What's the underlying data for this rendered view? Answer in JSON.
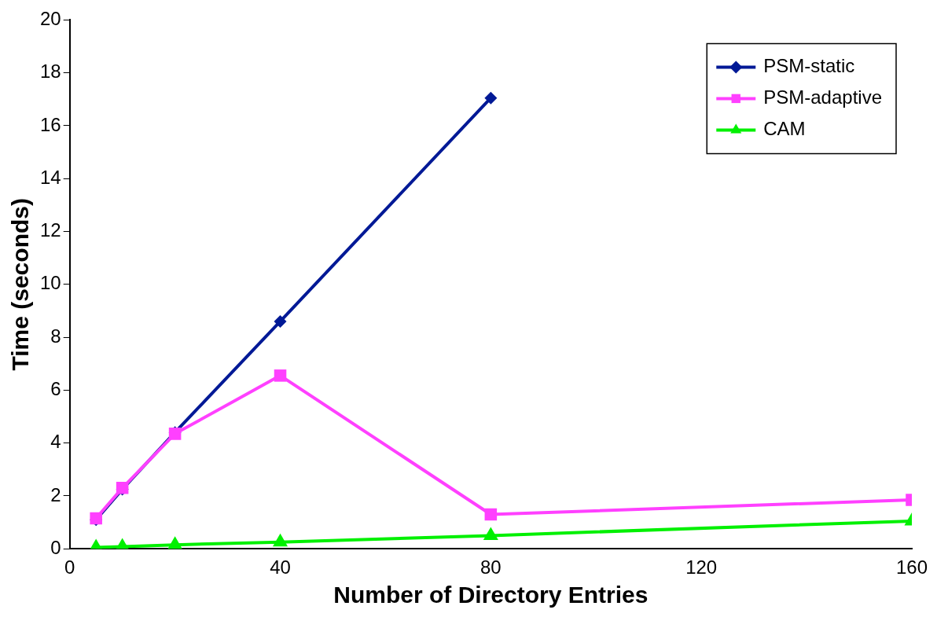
{
  "chart_data": {
    "type": "line",
    "xlabel": "Number of Directory Entries",
    "ylabel": "Time (seconds)",
    "x": [
      5,
      10,
      20,
      40,
      80,
      160
    ],
    "series": [
      {
        "name": "PSM-static",
        "color": "#001996",
        "marker": "diamond",
        "values": [
          1.1,
          2.25,
          4.4,
          8.6,
          17.05,
          null
        ]
      },
      {
        "name": "PSM-adaptive",
        "color": "#ff40ff",
        "marker": "square",
        "values": [
          1.15,
          2.3,
          4.35,
          6.55,
          1.3,
          1.85
        ]
      },
      {
        "name": "CAM",
        "color": "#00f000",
        "marker": "triangle",
        "values": [
          0.05,
          0.08,
          0.15,
          0.25,
          0.5,
          1.05
        ]
      }
    ],
    "xlim": [
      0,
      160
    ],
    "xticks": [
      0,
      40,
      80,
      120,
      160
    ],
    "ylim": [
      0,
      20
    ],
    "yticks": [
      0,
      2,
      4,
      6,
      8,
      10,
      12,
      14,
      16,
      18,
      20
    ],
    "grid": false,
    "legend": "top right",
    "line_style": "solid"
  }
}
